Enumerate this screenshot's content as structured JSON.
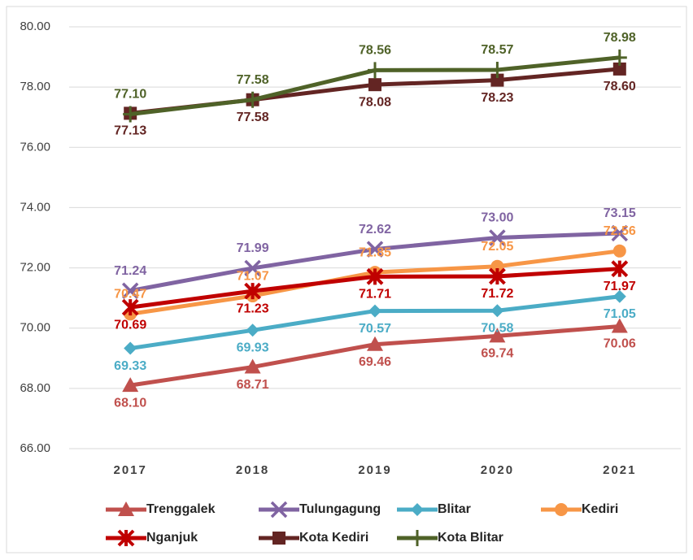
{
  "chart_data": {
    "type": "line",
    "categories": [
      "2017",
      "2018",
      "2019",
      "2020",
      "2021"
    ],
    "ylim": [
      66,
      80
    ],
    "yticks": [
      {
        "value": 66,
        "label": "66.00"
      },
      {
        "value": 68,
        "label": "68.00"
      },
      {
        "value": 70,
        "label": "70.00"
      },
      {
        "value": 72,
        "label": "72.00"
      },
      {
        "value": 74,
        "label": "74.00"
      },
      {
        "value": 76,
        "label": "76.00"
      },
      {
        "value": 78,
        "label": "78.00"
      },
      {
        "value": 80,
        "label": "80.00"
      }
    ],
    "grid": true,
    "legend": "bottom",
    "series": [
      {
        "name": "Trenggalek",
        "color": "#c0504d",
        "marker": "triangle",
        "values": [
          68.1,
          68.71,
          69.46,
          69.74,
          70.06
        ],
        "value_labels": [
          "68.10",
          "68.71",
          "69.46",
          "69.74",
          "70.06"
        ]
      },
      {
        "name": "Tulungagung",
        "color": "#8064a2",
        "marker": "x",
        "values": [
          71.24,
          71.99,
          72.62,
          73.0,
          73.15
        ],
        "value_labels": [
          "71.24",
          "71.99",
          "72.62",
          "73.00",
          "73.15"
        ]
      },
      {
        "name": "Blitar",
        "color": "#4bacc6",
        "marker": "diamond",
        "values": [
          69.33,
          69.93,
          70.57,
          70.58,
          71.05
        ],
        "value_labels": [
          "69.33",
          "69.93",
          "70.57",
          "70.58",
          "71.05"
        ]
      },
      {
        "name": "Kediri",
        "color": "#f79646",
        "marker": "circle",
        "values": [
          70.47,
          71.07,
          71.85,
          72.05,
          72.56
        ],
        "value_labels": [
          "70.47",
          "71.07",
          "71.85",
          "72.05",
          "72.56"
        ]
      },
      {
        "name": "Nganjuk",
        "color": "#c00000",
        "marker": "star",
        "values": [
          70.69,
          71.23,
          71.71,
          71.72,
          71.97
        ],
        "value_labels": [
          "70.69",
          "71.23",
          "71.71",
          "71.72",
          "71.97"
        ]
      },
      {
        "name": "Kota Kediri",
        "color": "#632523",
        "marker": "square",
        "values": [
          77.13,
          77.58,
          78.08,
          78.23,
          78.6
        ],
        "value_labels": [
          "77.13",
          "77.58",
          "78.08",
          "78.23",
          "78.60"
        ]
      },
      {
        "name": "Kota Blitar",
        "color": "#4f6228",
        "marker": "plus",
        "values": [
          77.1,
          77.58,
          78.56,
          78.57,
          78.98
        ],
        "value_labels": [
          "77.10",
          "77.58",
          "78.56",
          "78.57",
          "78.98"
        ]
      }
    ]
  }
}
